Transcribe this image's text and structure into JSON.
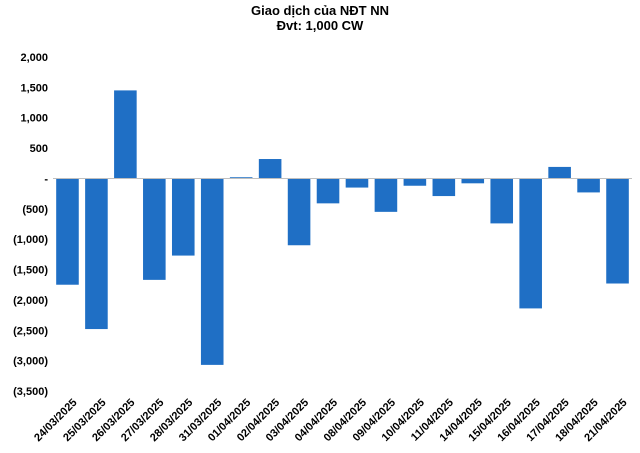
{
  "chart_data": {
    "type": "bar",
    "title": "Giao dịch của NĐT NN",
    "subtitle": "Đvt: 1,000 CW",
    "xlabel": "",
    "ylabel": "",
    "ylim": [
      -3500,
      2000
    ],
    "yticks": [
      2000,
      1500,
      1000,
      500,
      0,
      -500,
      -1000,
      -1500,
      -2000,
      -2500,
      -3000,
      -3500
    ],
    "ytick_labels": [
      "2,000",
      "1,500",
      "1,000",
      "500",
      "-",
      "(500)",
      "(1,000)",
      "(1,500)",
      "(2,000)",
      "(2,500)",
      "(3,000)",
      "(3,500)"
    ],
    "categories": [
      "24/03/2025",
      "25/03/2025",
      "26/03/2025",
      "27/03/2025",
      "28/03/2025",
      "31/03/2025",
      "01/04/2025",
      "02/04/2025",
      "03/04/2025",
      "04/04/2025",
      "08/04/2025",
      "09/04/2025",
      "10/04/2025",
      "11/04/2025",
      "14/04/2025",
      "15/04/2025",
      "16/04/2025",
      "17/04/2025",
      "18/04/2025",
      "21/04/2025"
    ],
    "values": [
      -1750,
      -2480,
      1450,
      -1670,
      -1270,
      -3070,
      20,
      320,
      -1100,
      -410,
      -150,
      -550,
      -120,
      -290,
      -80,
      -740,
      -2140,
      190,
      -230,
      -1730
    ],
    "bar_color": "#1f6fc5",
    "grid": false,
    "legend": "none"
  }
}
